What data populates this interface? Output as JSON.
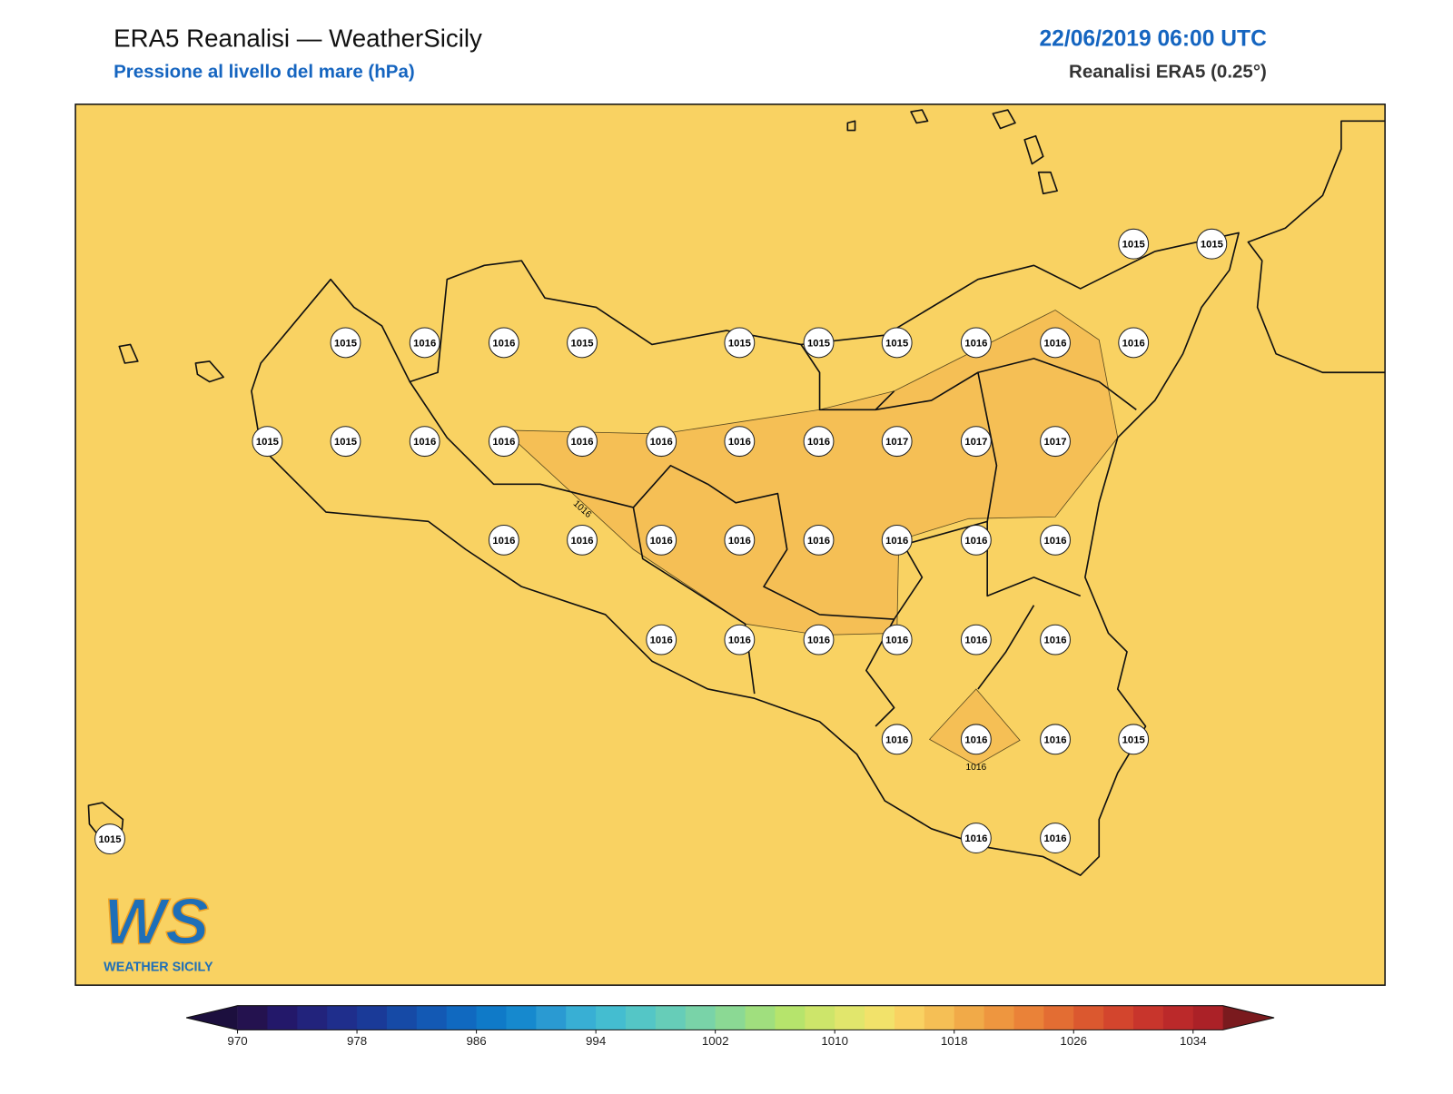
{
  "header": {
    "title": "ERA5 Reanalisi — WeatherSicily",
    "subtitle": "Pressione al livello del mare (hPa)",
    "datetime": "22/06/2019 06:00 UTC",
    "source": "Reanalisi ERA5 (0.25°)"
  },
  "map": {
    "station_labels": [
      1015,
      1015,
      1015,
      1016,
      1016,
      1015,
      1015,
      1015,
      1015,
      1016,
      1016,
      1016,
      1015,
      1015,
      1016,
      1016,
      1016,
      1016,
      1016,
      1016,
      1017,
      1017,
      1017,
      1016,
      1016,
      1016,
      1016,
      1016,
      1016,
      1016,
      1016,
      1016,
      1016,
      1016,
      1016,
      1016,
      1016,
      1016,
      1016,
      1016,
      1015,
      1015,
      1016,
      1016
    ],
    "contour_labels": [
      1016,
      1016
    ]
  },
  "logo": {
    "mark": "WS",
    "text": "WEATHER SICILY"
  },
  "colorbar": {
    "range": [
      970,
      1036
    ],
    "ticks": [
      970,
      978,
      986,
      994,
      1002,
      1010,
      1018,
      1026,
      1034
    ],
    "colors": [
      "#24124f",
      "#23186a",
      "#22237c",
      "#1f2e8c",
      "#1a3a98",
      "#164aa6",
      "#1359b4",
      "#1069c0",
      "#0f7ac8",
      "#1689ce",
      "#2a9ad2",
      "#38afd4",
      "#44bdd0",
      "#54c6c6",
      "#66cdb8",
      "#79d3a8",
      "#8bd994",
      "#a0df7e",
      "#b6e46c",
      "#cde56a",
      "#e1e66c",
      "#f2e26a",
      "#f9d262",
      "#f5bf55",
      "#f1aa48",
      "#ee963f",
      "#ea8238",
      "#e36d33",
      "#db582f",
      "#d3452d",
      "#c8352c",
      "#bb292a",
      "#ab2127"
    ],
    "under_color": "#1c0f3e",
    "over_color": "#7a1a1e"
  }
}
